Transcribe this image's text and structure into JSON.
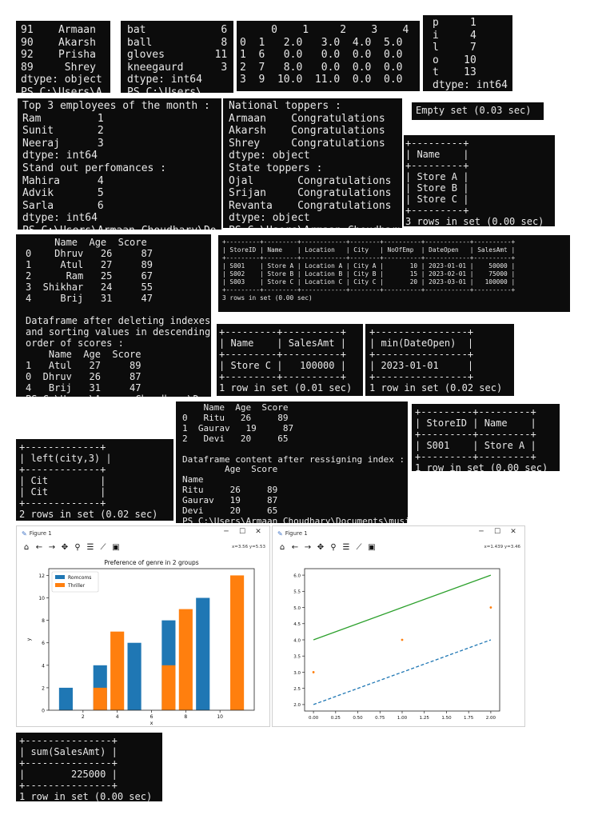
{
  "terminals": {
    "t1": {
      "text": "91    Armaan\n90    Akarsh\n92    Prisha\n89     Shrey\ndtype: object\nPS C:\\Users\\A"
    },
    "t2": {
      "text": "bat            6\nball           8\ngloves        11\nkneegaurd      3\ndtype: int64\nPS C:\\Users\\"
    },
    "t3": {
      "text": "     0    1     2    3    4\n0  1   2.0   3.0  4.0  5.0\n1  6   0.0   0.0  0.0  0.0\n2  7   8.0   0.0  0.0  0.0\n3  9  10.0  11.0  0.0  0.0"
    },
    "t4": {
      "text": "p     1\ni     4\nl     7\no    10\nt    13\ndtype: int64"
    },
    "t5": {
      "text": "Top 3 employees of the month :\nRam         1\nSunit       2\nNeeraj      3\ndtype: int64\nStand out perfomances :\nMahira      4\nAdvik       5\nSarla       6\ndtype: int64\nPS C:\\Users\\Armaan Choudhary\\Do"
    },
    "t6": {
      "text": "National toppers :\nArmaan    Congratulations\nAkarsh    Congratulations\nShrey     Congratulations\ndtype: object\nState toppers :\nOjal       Congratulations\nSrijan     Congratulations\nRevanta    Congratulations\ndtype: object\nPS C:\\Users\\Armaan Choudhary"
    },
    "t7": {
      "text": "Empty set (0.03 sec)"
    },
    "t8": {
      "text": "+---------+\n| Name    |\n+---------+\n| Store A |\n| Store B |\n| Store C |\n+---------+\n3 rows in set (0.00 sec)"
    },
    "t9": {
      "text": "     Name  Age  Score\n0    Dhruv   26     87\n1     Atul   27     89\n2      Ram   25     67\n3  Shikhar   24     55\n4     Brij   31     47\n\nDataframe after deleting indexes\nand sorting values in descending\norder of scores :\n    Name  Age  Score\n1   Atul   27     89\n0  Dhruv   26     87\n4   Brij   31     47\nPS C:\\Users\\Armaan Choudhary\\Docu"
    },
    "t10": {
      "text": "+---------+---------+------------+--------+----------+------------+----------+\n| StoreID | Name    | Location   | City   | NoOfEmp  | DateOpen   | SalesAmt |\n+---------+---------+------------+--------+----------+------------+----------+\n| S001    | Store A | Location A | City A |       10 | 2023-01-01 |    50000 |\n| S002    | Store B | Location B | City B |       15 | 2023-02-01 |    75000 |\n| S003    | Store C | Location C | City C |       20 | 2023-03-01 |   100000 |\n+---------+---------+------------+--------+----------+------------+----------+\n3 rows in set (0.00 sec)"
    },
    "t11": {
      "text": "+---------+----------+\n| Name    | SalesAmt |\n+---------+----------+\n| Store C |   100000 |\n+---------+----------+\n1 row in set (0.01 sec)"
    },
    "t12": {
      "text": "+----------------+\n| min(DateOpen)  |\n+----------------+\n| 2023-01-01     |\n+----------------+\n1 row in set (0.02 sec)"
    },
    "t13": {
      "text": "    Name  Age  Score\n0   Ritu   26     89\n1  Gaurav   19     87\n2   Devi   20     65\n\nDataframe content after ressigning index :\n        Age  Score\nName\nRitu     26     89\nGaurav   19     87\nDevi     20     65\nPS C:\\Users\\Armaan Choudhary\\Documents\\musi"
    },
    "t14": {
      "text": "+---------+---------+\n| StoreID | Name    |\n+---------+---------+\n| S001    | Store A |\n+---------+---------+\n1 row in set (0.00 sec)"
    },
    "t15": {
      "text": "+-------------+\n| left(city,3) |\n+-------------+\n| Cit         |\n| Cit         |\n+-------------+\n2 rows in set (0.02 sec)"
    },
    "t16": {
      "text": "+---------------+\n| sum(SalesAmt) |\n+---------------+\n|        225000 |\n+---------------+\n1 row in set (0.00 sec)"
    }
  },
  "figures": {
    "fig1": {
      "window_title": "Figure 1",
      "coords": "x=3.56 y=5.53",
      "colors": {
        "series1": "#1f77b4",
        "series2": "#ff7f0e"
      }
    },
    "fig2": {
      "window_title": "Figure 1",
      "coords": "x=1.439 y=3.46",
      "colors": {
        "solid": "#2ca02c",
        "dashed": "#1f77b4",
        "points": "#ff7f0e"
      }
    }
  },
  "chart_data": [
    {
      "type": "bar",
      "title": "Preference of genre in 2 groups",
      "xlabel": "x",
      "ylabel": "y",
      "xlim": [
        0,
        12
      ],
      "ylim": [
        0,
        12.6
      ],
      "xticks": [
        2,
        4,
        6,
        8,
        10
      ],
      "yticks": [
        0,
        2,
        4,
        6,
        8,
        10,
        12
      ],
      "legend": "upper-left",
      "series": [
        {
          "name": "Romcoms",
          "x": [
            1,
            3,
            5,
            7,
            9
          ],
          "values": [
            2,
            4,
            6,
            8,
            10
          ]
        },
        {
          "name": "Thriller",
          "x": [
            3,
            4,
            7,
            8,
            11
          ],
          "values": [
            2,
            7,
            4,
            9,
            12
          ]
        }
      ]
    },
    {
      "type": "line",
      "xlim": [
        -0.1,
        2.1
      ],
      "ylim": [
        1.8,
        6.2
      ],
      "xticks": [
        0.0,
        0.25,
        0.5,
        0.75,
        1.0,
        1.25,
        1.5,
        1.75,
        2.0
      ],
      "yticks": [
        2.0,
        2.5,
        3.0,
        3.5,
        4.0,
        4.5,
        5.0,
        5.5,
        6.0
      ],
      "series": [
        {
          "style": "solid",
          "x": [
            0,
            1,
            2
          ],
          "values": [
            4,
            5,
            6
          ]
        },
        {
          "style": "dashed",
          "x": [
            0,
            1,
            2
          ],
          "values": [
            2,
            3,
            4
          ]
        },
        {
          "style": "points",
          "x": [
            0,
            1,
            2
          ],
          "values": [
            3,
            4,
            5
          ]
        }
      ]
    }
  ]
}
